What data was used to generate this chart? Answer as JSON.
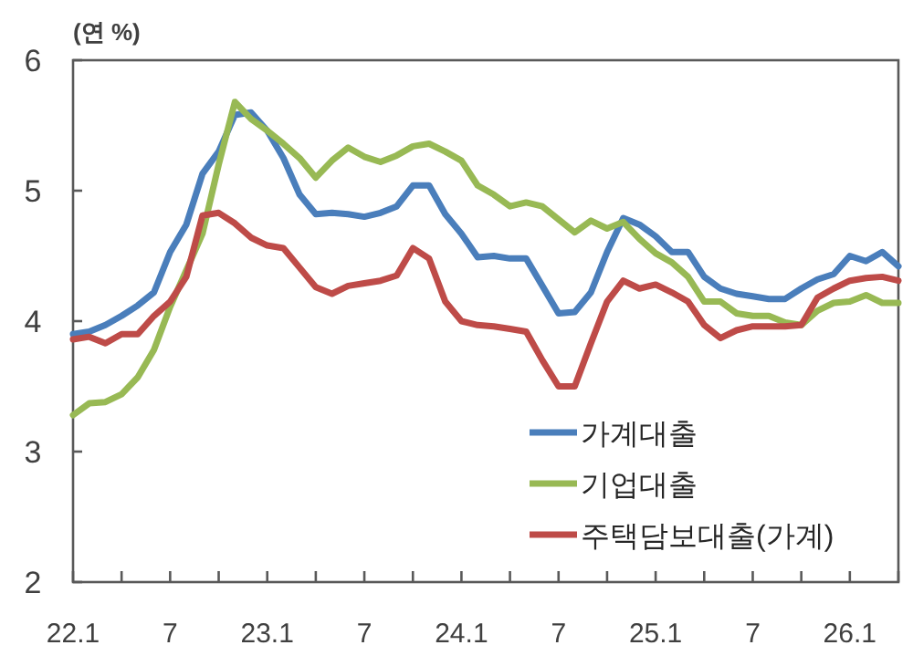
{
  "chart_data": {
    "type": "line",
    "ylabel": "(연 %)",
    "categories": [
      "22.1",
      null,
      null,
      null,
      null,
      null,
      "7",
      null,
      null,
      null,
      null,
      null,
      "23.1",
      null,
      null,
      null,
      null,
      null,
      "7",
      null,
      null,
      null,
      null,
      null,
      "24.1",
      null,
      null,
      null,
      null,
      null,
      "7",
      null,
      null,
      null,
      null,
      null,
      "25.1",
      null,
      null,
      null,
      null,
      null,
      "7",
      null,
      null,
      null,
      null,
      null,
      "26.1",
      null,
      null,
      null
    ],
    "series": [
      {
        "name": "가계대출",
        "color": "#4a7ebb",
        "values": [
          3.9,
          3.92,
          3.97,
          4.04,
          4.12,
          4.22,
          4.53,
          4.74,
          5.13,
          5.3,
          5.58,
          5.6,
          5.46,
          5.25,
          4.97,
          4.82,
          4.83,
          4.82,
          4.8,
          4.83,
          4.88,
          5.04,
          5.04,
          4.82,
          4.67,
          4.49,
          4.5,
          4.48,
          4.48,
          4.27,
          4.06,
          4.07,
          4.22,
          4.53,
          4.79,
          4.74,
          4.65,
          4.53,
          4.53,
          4.34,
          4.25,
          4.21,
          4.19,
          4.17,
          4.17,
          4.25,
          4.32,
          4.36,
          4.5,
          4.46,
          4.53,
          4.42
        ]
      },
      {
        "name": "기업대출",
        "color": "#98b954",
        "values": [
          3.28,
          3.37,
          3.38,
          3.44,
          3.57,
          3.78,
          4.11,
          4.39,
          4.67,
          5.2,
          5.68,
          5.55,
          5.46,
          5.36,
          5.25,
          5.1,
          5.23,
          5.33,
          5.26,
          5.22,
          5.27,
          5.34,
          5.36,
          5.3,
          5.23,
          5.04,
          4.97,
          4.88,
          4.91,
          4.88,
          4.78,
          4.68,
          4.77,
          4.71,
          4.76,
          4.63,
          4.52,
          4.45,
          4.34,
          4.15,
          4.15,
          4.06,
          4.04,
          4.04,
          3.99,
          3.97,
          4.08,
          4.14,
          4.15,
          4.2,
          4.14,
          4.14
        ]
      },
      {
        "name": "주택담보대출(가계)",
        "color": "#be4b48",
        "values": [
          3.86,
          3.88,
          3.83,
          3.9,
          3.9,
          4.04,
          4.15,
          4.34,
          4.81,
          4.83,
          4.75,
          4.64,
          4.58,
          4.56,
          4.41,
          4.26,
          4.21,
          4.27,
          4.29,
          4.31,
          4.35,
          4.56,
          4.48,
          4.15,
          4.0,
          3.97,
          3.96,
          3.94,
          3.92,
          3.7,
          3.5,
          3.5,
          3.83,
          4.15,
          4.31,
          4.25,
          4.28,
          4.22,
          4.15,
          3.97,
          3.87,
          3.93,
          3.96,
          3.96,
          3.96,
          3.97,
          4.18,
          4.25,
          4.31,
          4.33,
          4.34,
          4.31
        ]
      }
    ],
    "ylim": [
      2,
      6
    ],
    "yticks": [
      2,
      3,
      4,
      5,
      6
    ],
    "grid": false,
    "legend": "bottom right",
    "marker": "none",
    "line_style": "solid"
  }
}
